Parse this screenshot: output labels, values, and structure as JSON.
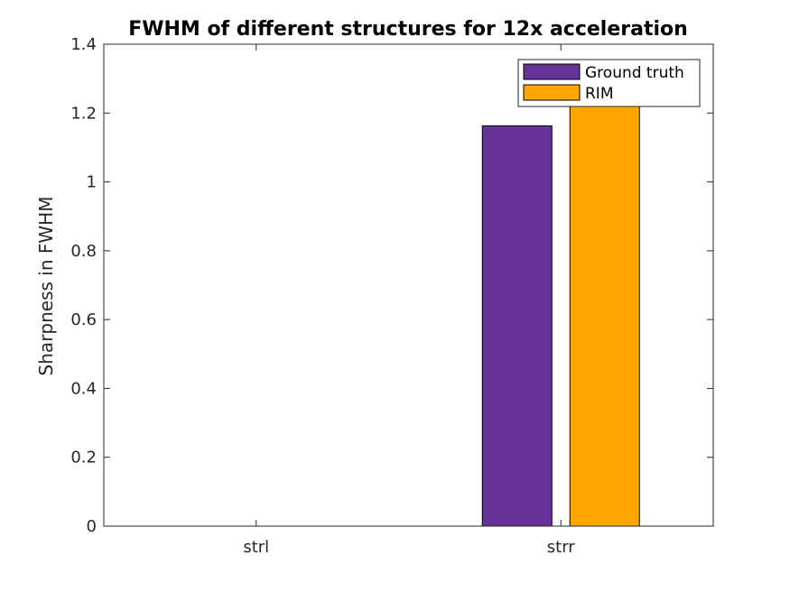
{
  "chart_data": {
    "type": "bar",
    "title": "FWHM of different structures for 12x acceleration",
    "xlabel": "",
    "ylabel": "Sharpness in FWHM",
    "categories": [
      "strl",
      "strr"
    ],
    "series": [
      {
        "name": "Ground truth",
        "color": "#663399",
        "values": [
          0,
          1.163
        ]
      },
      {
        "name": "RIM",
        "color": "#FFA500",
        "values": [
          0,
          1.225
        ]
      }
    ],
    "ylim": [
      0,
      1.4
    ],
    "yticks": [
      "0",
      "0.2",
      "0.4",
      "0.6",
      "0.8",
      "1",
      "1.2",
      "1.4"
    ],
    "grid": false,
    "legend_position": "top-right"
  }
}
